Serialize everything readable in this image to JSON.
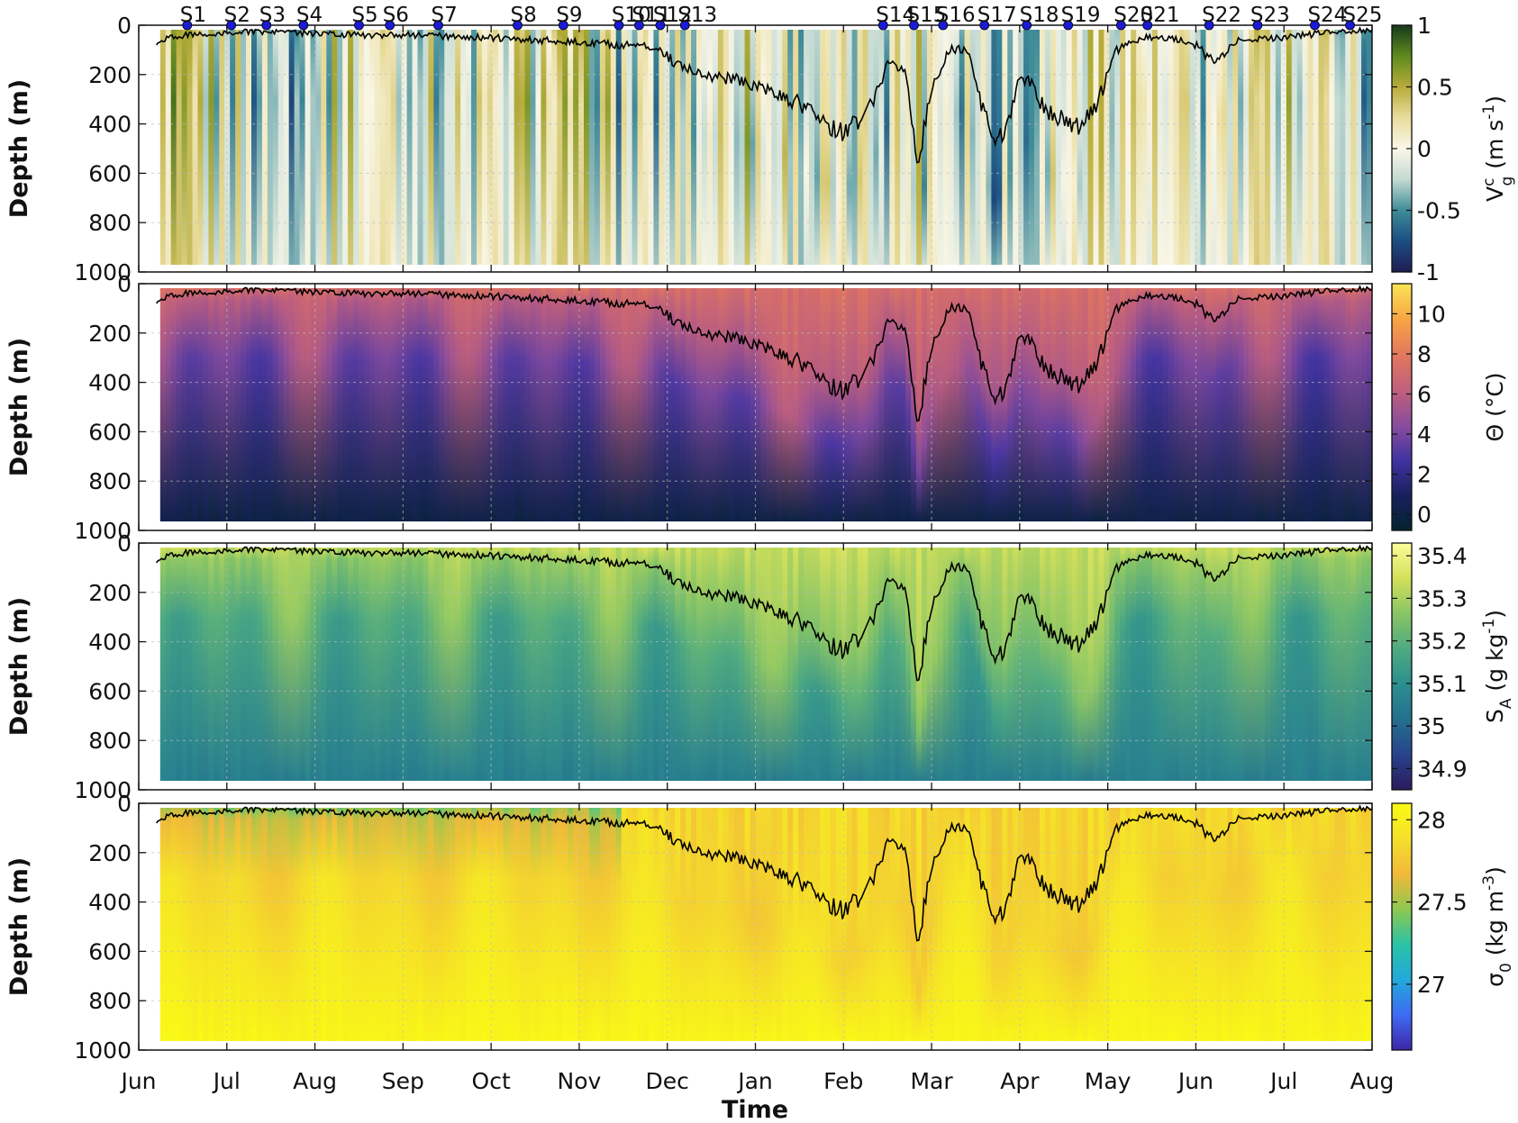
{
  "chart_data": {
    "type": "heatmap",
    "title": "",
    "xlabel": "Time",
    "ylabel": "Depth (m)",
    "x_range_months": [
      0,
      14
    ],
    "y_range": [
      0,
      1000
    ],
    "y_reversed": true,
    "x_tick_labels": [
      "Jun",
      "Jul",
      "Aug",
      "Sep",
      "Oct",
      "Nov",
      "Dec",
      "Jan",
      "Feb",
      "Mar",
      "Apr",
      "May",
      "Jun",
      "Jul",
      "Aug"
    ],
    "y_tick_labels": [
      "0",
      "200",
      "400",
      "600",
      "800",
      "1000"
    ],
    "events": [
      {
        "label": "S1",
        "t": 0.55
      },
      {
        "label": "S2",
        "t": 1.05
      },
      {
        "label": "S3",
        "t": 1.45
      },
      {
        "label": "S4",
        "t": 1.87
      },
      {
        "label": "S5",
        "t": 2.5
      },
      {
        "label": "S6",
        "t": 2.85
      },
      {
        "label": "S7",
        "t": 3.4
      },
      {
        "label": "S8",
        "t": 4.3
      },
      {
        "label": "S9",
        "t": 4.82
      },
      {
        "label": "S10",
        "t": 5.45
      },
      {
        "label": "S11",
        "t": 5.68
      },
      {
        "label": "S12",
        "t": 5.92
      },
      {
        "label": "S13",
        "t": 6.2
      },
      {
        "label": "S14",
        "t": 8.45
      },
      {
        "label": "S15",
        "t": 8.8
      },
      {
        "label": "S16",
        "t": 9.13
      },
      {
        "label": "S17",
        "t": 9.6
      },
      {
        "label": "S18",
        "t": 10.08
      },
      {
        "label": "S19",
        "t": 10.55
      },
      {
        "label": "S20",
        "t": 11.15
      },
      {
        "label": "S21",
        "t": 11.45
      },
      {
        "label": "S22",
        "t": 12.15
      },
      {
        "label": "S23",
        "t": 12.7
      },
      {
        "label": "S24",
        "t": 13.35
      },
      {
        "label": "S25",
        "t": 13.75
      }
    ],
    "mixed_layer_depth": {
      "t": [
        0.2,
        0.5,
        1.0,
        1.5,
        2.0,
        2.5,
        3.0,
        3.5,
        4.0,
        4.5,
        5.0,
        5.5,
        5.9,
        6.1,
        6.4,
        6.8,
        7.2,
        7.5,
        7.8,
        8.0,
        8.2,
        8.35,
        8.5,
        8.7,
        8.85,
        9.0,
        9.2,
        9.4,
        9.55,
        9.7,
        9.85,
        10.0,
        10.15,
        10.3,
        10.5,
        10.7,
        10.9,
        11.1,
        11.4,
        11.7,
        12.0,
        12.2,
        12.5,
        13.0,
        13.5,
        14.0
      ],
      "depth": [
        70,
        40,
        30,
        25,
        35,
        40,
        40,
        45,
        50,
        60,
        70,
        80,
        90,
        160,
        200,
        220,
        260,
        320,
        400,
        430,
        380,
        300,
        150,
        200,
        550,
        250,
        100,
        100,
        300,
        480,
        420,
        200,
        250,
        350,
        380,
        420,
        300,
        100,
        50,
        50,
        80,
        150,
        60,
        50,
        30,
        20
      ]
    },
    "panels": [
      {
        "name": "vg",
        "colorbar_label": "V",
        "colorbar_sup": "c",
        "colorbar_sub": "g",
        "colorbar_unit": "(m s",
        "colorbar_unit_exp": "-1",
        "colorbar_unit_end": ")",
        "clim": [
          -1,
          1
        ],
        "colorbar_ticks": [
          1,
          0.5,
          0,
          -0.5,
          -1
        ],
        "colorbar_tick_labels": [
          "1",
          "0.5",
          "0",
          "-0.5",
          "-1"
        ],
        "colormap": [
          "#1e1d52",
          "#1b4e83",
          "#3e8b98",
          "#c3dad2",
          "#faf7e8",
          "#e9dc9c",
          "#b7ac3a",
          "#5e8b1e",
          "#173a1d"
        ],
        "has_events": true,
        "has_mld": true
      },
      {
        "name": "theta",
        "colorbar_label": "Θ (°C)",
        "clim": [
          -0.8,
          11.5
        ],
        "colorbar_ticks": [
          10,
          8,
          6,
          4,
          2,
          0
        ],
        "colorbar_tick_labels": [
          "10",
          "8",
          "6",
          "4",
          "2",
          "0"
        ],
        "colormap": [
          "#032331",
          "#19205d",
          "#4133a2",
          "#8b4d9c",
          "#c1607b",
          "#e3785d",
          "#f7a544",
          "#fbe455"
        ],
        "has_events": false,
        "has_mld": true
      },
      {
        "name": "sa",
        "colorbar_label": "S",
        "colorbar_sub": "A",
        "colorbar_unit": "(g kg",
        "colorbar_unit_exp": "-1",
        "colorbar_unit_end": ")",
        "clim": [
          34.85,
          35.43
        ],
        "colorbar_ticks": [
          35.4,
          35.3,
          35.2,
          35.1,
          35.0,
          34.9
        ],
        "colorbar_tick_labels": [
          "35.4",
          "35.3",
          "35.2",
          "35.1",
          "35",
          "34.9"
        ],
        "colormap": [
          "#2b1a5e",
          "#28438c",
          "#24708e",
          "#2b8e8f",
          "#4faa81",
          "#89c565",
          "#d3e05a",
          "#fcfd9a"
        ],
        "has_events": false,
        "has_mld": true
      },
      {
        "name": "sigma0",
        "colorbar_label": "σ",
        "colorbar_sub": "0",
        "colorbar_unit": "(kg m",
        "colorbar_unit_exp": "-3",
        "colorbar_unit_end": ")",
        "clim": [
          26.6,
          28.1
        ],
        "colorbar_ticks": [
          28,
          27.5,
          27
        ],
        "colorbar_tick_labels": [
          "28",
          "27.5",
          "27"
        ],
        "colormap": [
          "#3e26a8",
          "#3e6bf5",
          "#21a9da",
          "#2bc2a6",
          "#8fc84f",
          "#f2b83a",
          "#f5e02a",
          "#f9fb14"
        ],
        "has_events": false,
        "has_mld": true
      }
    ]
  }
}
